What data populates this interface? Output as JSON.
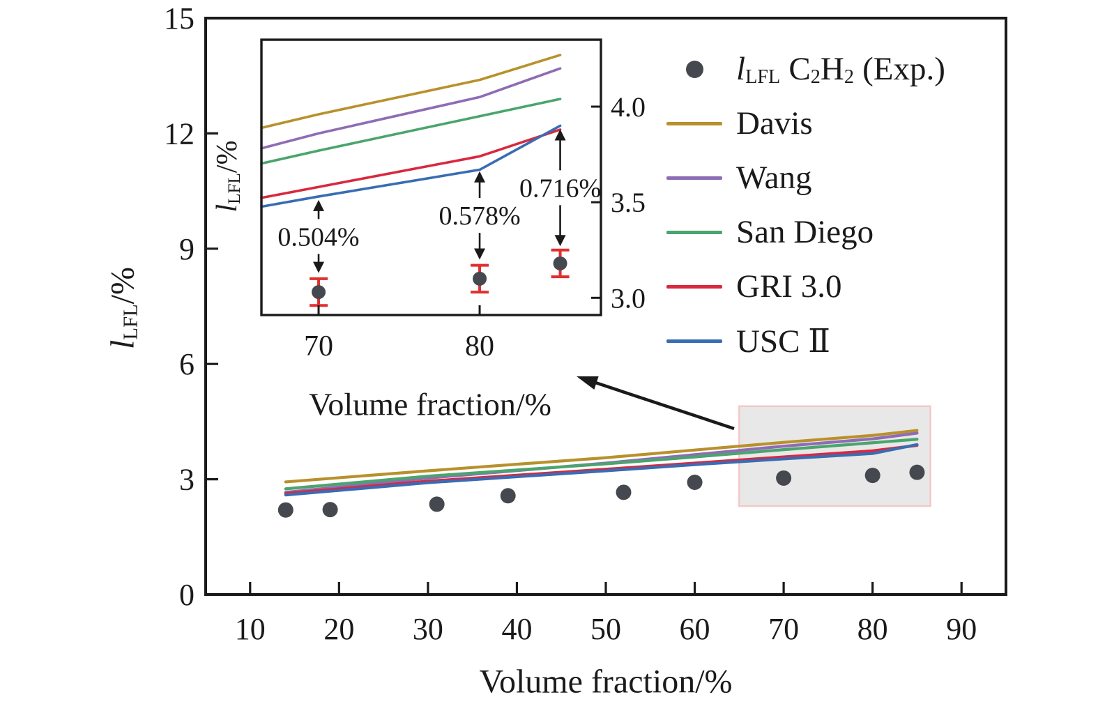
{
  "figure": {
    "background": "#ffffff",
    "frame_color": "#1a1a1a",
    "error_bar_color": "#e02f2f"
  },
  "legend": {
    "exp_symbol": "l",
    "exp_symbol_sub": "LFL",
    "exp_c": "C",
    "exp_c_sub": "2",
    "exp_h": "H",
    "exp_h_sub": "2",
    "exp_suffix": "(Exp.)"
  },
  "chart_data": {
    "type": "line",
    "title": "",
    "series": [
      {
        "name": "Davis",
        "color": "#b8912c",
        "x": [
          14,
          30,
          50,
          60,
          70,
          80,
          85
        ],
        "y": [
          2.93,
          3.22,
          3.56,
          3.76,
          3.96,
          4.14,
          4.27
        ]
      },
      {
        "name": "Wang",
        "color": "#8e6cb5",
        "x": [
          14,
          30,
          50,
          60,
          70,
          80,
          85
        ],
        "y": [
          2.66,
          3.03,
          3.42,
          3.64,
          3.86,
          4.05,
          4.2
        ]
      },
      {
        "name": "San Diego",
        "color": "#4aa56d",
        "x": [
          14,
          30,
          50,
          60,
          70,
          80,
          85
        ],
        "y": [
          2.75,
          3.08,
          3.4,
          3.58,
          3.77,
          3.95,
          4.04
        ]
      },
      {
        "name": "GRI 3.0",
        "color": "#d8293f",
        "x": [
          14,
          30,
          50,
          60,
          70,
          80,
          85
        ],
        "y": [
          2.63,
          2.95,
          3.26,
          3.42,
          3.58,
          3.74,
          3.88
        ]
      },
      {
        "name": "USC Ⅱ",
        "color": "#3a6cb3",
        "x": [
          14,
          30,
          50,
          60,
          70,
          80,
          85
        ],
        "y": [
          2.59,
          2.91,
          3.22,
          3.38,
          3.53,
          3.67,
          3.9
        ]
      }
    ],
    "experimental": {
      "name": "l_LFL C2H2 (Exp.)",
      "color": "#45494f",
      "x": [
        14,
        19,
        31,
        39,
        52,
        60,
        70,
        80,
        85
      ],
      "y": [
        2.2,
        2.21,
        2.35,
        2.57,
        2.66,
        2.92,
        3.03,
        3.1,
        3.18
      ]
    },
    "main": {
      "xlim": [
        5,
        95
      ],
      "ylim": [
        0,
        15
      ],
      "x_ticks": [
        10,
        20,
        30,
        40,
        50,
        60,
        70,
        80,
        90
      ],
      "y_ticks": [
        0,
        3,
        6,
        9,
        12,
        15
      ],
      "xlabel": "Volume fraction/%",
      "ylabel_symbol": "l",
      "ylabel_sub": "LFL",
      "ylabel_unit": "/%",
      "grid": false,
      "highlight_rect": {
        "x0": 65,
        "x1": 86.5,
        "y0": 2.3,
        "y1": 4.9,
        "fill": "#e9e8e8",
        "border": "#f3c8c8"
      }
    },
    "inset": {
      "xlim": [
        66.45,
        87.53
      ],
      "ylim": [
        2.91,
        4.35
      ],
      "x_ticks": [
        70,
        80
      ],
      "y_ticks": [
        3.0,
        3.5,
        4.0
      ],
      "xlabel": "Volume fraction/%",
      "ylabel_symbol": "l",
      "ylabel_sub": "LFL",
      "ylabel_unit": "/%",
      "exp_error": 0.07,
      "annotations": [
        {
          "x": 70,
          "label": "0.504%",
          "line_y": 3.53,
          "point_y": 3.13
        },
        {
          "x": 80,
          "label": "0.578%",
          "line_y": 3.68,
          "point_y": 3.2
        },
        {
          "x": 85,
          "label": "0.716%",
          "line_y": 3.9,
          "point_y": 3.27
        }
      ]
    },
    "legend_position": "upper right"
  }
}
